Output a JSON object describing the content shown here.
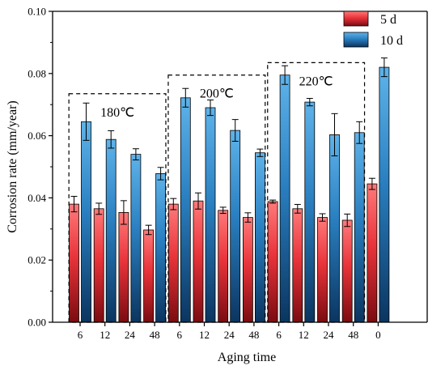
{
  "chart_data": {
    "type": "bar",
    "title": "",
    "xlabel": "Aging time",
    "ylabel": "Corrosion rate (mm/year)",
    "ylim": [
      0,
      0.1
    ],
    "yticks": [
      "0.00",
      "0.02",
      "0.04",
      "0.06",
      "0.08",
      "0.10"
    ],
    "categories": [
      "6",
      "12",
      "24",
      "48",
      "6",
      "12",
      "24",
      "48",
      "6",
      "12",
      "24",
      "48",
      "0"
    ],
    "series": [
      {
        "name": "5 d",
        "color": "#e8333a",
        "values": [
          0.038,
          0.0365,
          0.0353,
          0.0297,
          0.038,
          0.039,
          0.036,
          0.0337,
          0.0388,
          0.0365,
          0.0337,
          0.0328,
          0.0445
        ],
        "errors": [
          0.0025,
          0.0018,
          0.0038,
          0.0015,
          0.0018,
          0.0026,
          0.001,
          0.0015,
          0.0005,
          0.0014,
          0.0012,
          0.002,
          0.0018
        ]
      },
      {
        "name": "10 d",
        "color": "#2a7fc0",
        "values": [
          0.0645,
          0.0588,
          0.054,
          0.0478,
          0.0722,
          0.069,
          0.0617,
          0.0545,
          0.0795,
          0.0708,
          0.0603,
          0.061,
          0.082
        ],
        "errors": [
          0.006,
          0.0028,
          0.0018,
          0.002,
          0.003,
          0.0025,
          0.0035,
          0.0012,
          0.003,
          0.0012,
          0.0068,
          0.0035,
          0.003
        ]
      }
    ],
    "groups": [
      {
        "label": "180℃",
        "from": 0,
        "to": 3
      },
      {
        "label": "200℃",
        "from": 4,
        "to": 7
      },
      {
        "label": "220℃",
        "from": 8,
        "to": 11
      }
    ],
    "legend": "top-right",
    "grid": false
  }
}
